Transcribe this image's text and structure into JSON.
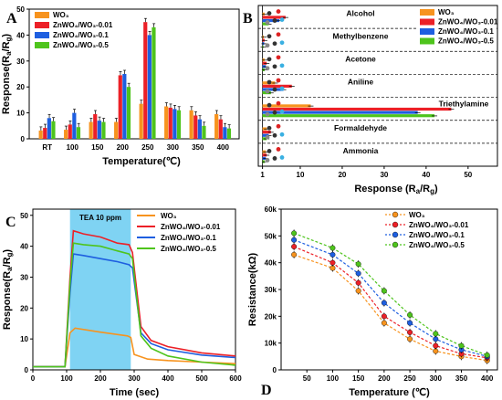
{
  "colors": {
    "WO3": "#f7931e",
    "ZnWO4/WO3-0.01": "#ec2027",
    "ZnWO4/WO3-0.1": "#1e5fe0",
    "ZnWO4/WO3-0.5": "#4ec41c",
    "tea_band": "#7fd3f3"
  },
  "legend_labels": [
    "WO₃",
    "ZnWO₄/WO₃-0.01",
    "ZnWO₄/WO₃-0.1",
    "ZnWO₄/WO₃-0.5"
  ],
  "chart_data": [
    {
      "panel": "A",
      "type": "bar",
      "xlabel": "Temperature(℃)",
      "ylabel": "Response(Ra/Rg)",
      "ylim": [
        0,
        50
      ],
      "yticks": [
        0,
        10,
        20,
        30,
        40,
        50
      ],
      "categories": [
        "RT",
        "100",
        "150",
        "200",
        "250",
        "300",
        "350",
        "400"
      ],
      "series": [
        {
          "name": "WO₃",
          "values": [
            3.2,
            3.5,
            6.5,
            6.5,
            13.5,
            12.5,
            11,
            9.5
          ]
        },
        {
          "name": "ZnWO₄/WO₃-0.01",
          "values": [
            4.2,
            5.5,
            9.5,
            24.5,
            45,
            12,
            9,
            7.5
          ]
        },
        {
          "name": "ZnWO₄/WO₃-0.1",
          "values": [
            8,
            10,
            7,
            25,
            40,
            11.5,
            7.5,
            4.5
          ]
        },
        {
          "name": "ZnWO₄/WO₃-0.5",
          "values": [
            6.8,
            4.5,
            6.5,
            20,
            43,
            11,
            5,
            4
          ]
        }
      ]
    },
    {
      "panel": "B",
      "type": "bar",
      "orientation": "horizontal",
      "xlabel": "Response (Ra/Rg)",
      "xlim": [
        0,
        57
      ],
      "xticks": [
        1,
        10,
        20,
        30,
        40,
        50
      ],
      "categories": [
        "Alcohol",
        "Methylbenzene",
        "Acetone",
        "Aniline",
        "Triethylamine",
        "Formaldehyde",
        "Ammonia"
      ],
      "series": [
        {
          "name": "WO₃",
          "values": [
            1.5,
            1.3,
            1.5,
            4,
            12.5,
            2,
            1.8
          ]
        },
        {
          "name": "ZnWO₄/WO₃-0.01",
          "values": [
            6.5,
            1.5,
            2,
            8,
            46,
            3,
            2
          ]
        },
        {
          "name": "ZnWO₄/WO₃-0.1",
          "values": [
            5,
            1.4,
            1.8,
            6,
            38,
            2.5,
            1.8
          ]
        },
        {
          "name": "ZnWO₄/WO₃-0.5",
          "values": [
            2.5,
            1.2,
            1.5,
            3,
            42,
            2,
            1.5
          ]
        }
      ]
    },
    {
      "panel": "C",
      "type": "line",
      "xlabel": "Time (sec)",
      "ylabel": "Response(Ra/Rg)",
      "xlim": [
        0,
        600
      ],
      "ylim": [
        0,
        52
      ],
      "xticks": [
        0,
        100,
        200,
        300,
        400,
        500,
        600
      ],
      "yticks": [
        0,
        10,
        20,
        30,
        40,
        50
      ],
      "annotation": "TEA 10 ppm",
      "tea_window": [
        110,
        290
      ],
      "series": [
        {
          "name": "WO₃",
          "x": [
            0,
            95,
            110,
            125,
            200,
            280,
            290,
            300,
            340,
            400,
            500,
            600
          ],
          "y": [
            1,
            1,
            12,
            13.5,
            12.2,
            11,
            10.5,
            5,
            3.5,
            3,
            2.5,
            2
          ]
        },
        {
          "name": "ZnWO₄/WO₃-0.01",
          "x": [
            0,
            95,
            110,
            120,
            150,
            200,
            250,
            285,
            295,
            320,
            350,
            400,
            500,
            600
          ],
          "y": [
            1,
            1,
            30,
            45,
            44,
            43,
            41,
            40.5,
            38,
            14,
            9.5,
            7.5,
            5.5,
            4.5
          ]
        },
        {
          "name": "ZnWO₄/WO₃-0.1",
          "x": [
            0,
            95,
            110,
            120,
            150,
            200,
            250,
            285,
            295,
            320,
            350,
            400,
            500,
            600
          ],
          "y": [
            1,
            1,
            25,
            37.5,
            37,
            36,
            35,
            34,
            33,
            12,
            8.5,
            6.5,
            4.8,
            4
          ]
        },
        {
          "name": "ZnWO₄/WO₃-0.5",
          "x": [
            0,
            95,
            110,
            120,
            150,
            200,
            250,
            285,
            295,
            320,
            350,
            400,
            500,
            600
          ],
          "y": [
            1,
            1,
            28,
            41,
            40.5,
            40,
            38.5,
            37.5,
            36,
            11,
            7,
            4.5,
            2.5,
            1.5
          ]
        }
      ]
    },
    {
      "panel": "D",
      "type": "line",
      "xlabel": "Temperature (℃)",
      "ylabel": "Resistance(kΩ)",
      "xlim": [
        0,
        420
      ],
      "ylim": [
        0,
        60000
      ],
      "xticks": [
        50,
        100,
        150,
        200,
        250,
        300,
        350,
        400
      ],
      "yticks": [
        0,
        10000,
        20000,
        30000,
        40000,
        50000,
        60000
      ],
      "ytick_labels": [
        "0",
        "10k",
        "20k",
        "30k",
        "40k",
        "50k",
        "60k"
      ],
      "x": [
        25,
        100,
        150,
        200,
        250,
        300,
        350,
        400
      ],
      "series": [
        {
          "name": "WO₃",
          "values": [
            43000,
            38000,
            29500,
            17500,
            11500,
            7000,
            5000,
            3500
          ]
        },
        {
          "name": "ZnWO₄/WO₃-0.01",
          "values": [
            46000,
            40000,
            32500,
            20000,
            14000,
            9000,
            6000,
            4500
          ]
        },
        {
          "name": "ZnWO₄/WO₃-0.1",
          "values": [
            48500,
            43000,
            36000,
            25000,
            17500,
            11500,
            7500,
            5000
          ]
        },
        {
          "name": "ZnWO₄/WO₃-0.5",
          "values": [
            51000,
            45500,
            39500,
            29500,
            20500,
            13500,
            9000,
            5500
          ]
        }
      ]
    }
  ]
}
